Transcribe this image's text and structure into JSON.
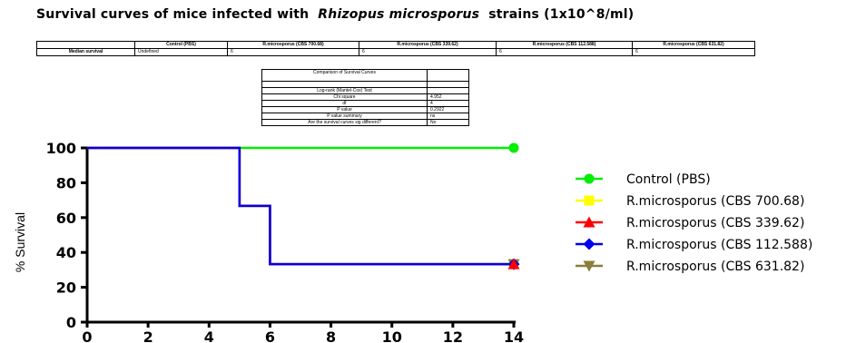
{
  "title": {
    "prefix": "Survival curves of mice infected with",
    "species": "Rhizopus microsporus",
    "suffix": "strains (1x10^8/ml)"
  },
  "median_table": {
    "headers": [
      "",
      "Control (PBS)",
      "R.microsporus (CBS 700.68)",
      "R.microsporus (CBS 339.62)",
      "R.microsporus (CBS 112.588)",
      "R.microsporus (CBS 631.82)"
    ],
    "row_label": "Median survival",
    "values": [
      "Undefined",
      "6",
      "6",
      "6",
      "6"
    ]
  },
  "comparison_table": {
    "header": "Comparison of Survival Curves",
    "rows": [
      {
        "label": "",
        "value": ""
      },
      {
        "label": "Log-rank (Mantel-Cox) Test",
        "value": ""
      },
      {
        "label": "Chi square",
        "value": "4.952"
      },
      {
        "label": "df",
        "value": "4"
      },
      {
        "label": "P value",
        "value": "0.2922"
      },
      {
        "label": "P value summary",
        "value": "ns"
      },
      {
        "label": "Are the survival curves sig different?",
        "value": "No"
      }
    ]
  },
  "chart_data": {
    "type": "line",
    "style": "step",
    "ylabel": "% Survival",
    "xlabel": "",
    "xlim": [
      0,
      14
    ],
    "ylim": [
      0,
      100
    ],
    "x_ticks": [
      0,
      2,
      4,
      6,
      8,
      10,
      12,
      14
    ],
    "y_ticks": [
      0,
      20,
      40,
      60,
      80,
      100
    ],
    "legend_position": "right",
    "series": [
      {
        "name": "Control (PBS)",
        "color": "#00ee00",
        "marker": "circle",
        "x": [
          0,
          14
        ],
        "y": [
          100,
          100
        ]
      },
      {
        "name": "R.microsporus (CBS 700.68)",
        "color": "#ffff00",
        "marker": "square",
        "x": [
          0,
          5,
          5,
          6,
          6,
          14
        ],
        "y": [
          100,
          100,
          66.7,
          66.7,
          33.3,
          33.3
        ]
      },
      {
        "name": "R.microsporus (CBS 339.62)",
        "color": "#ff0000",
        "marker": "triangle-up",
        "x": [
          0,
          5,
          5,
          6,
          6,
          14
        ],
        "y": [
          100,
          100,
          66.7,
          66.7,
          33.3,
          33.3
        ]
      },
      {
        "name": "R.microsporus (CBS 112.588)",
        "color": "#0000ee",
        "marker": "diamond",
        "x": [
          0,
          5,
          5,
          6,
          6,
          14
        ],
        "y": [
          100,
          100,
          66.7,
          66.7,
          33.3,
          33.3
        ]
      },
      {
        "name": "R.microsporus (CBS 631.82)",
        "color": "#8b7d3a",
        "marker": "triangle-down",
        "x": [
          0,
          5,
          5,
          6,
          6,
          14
        ],
        "y": [
          100,
          100,
          66.7,
          66.7,
          33.3,
          33.3
        ]
      }
    ]
  }
}
